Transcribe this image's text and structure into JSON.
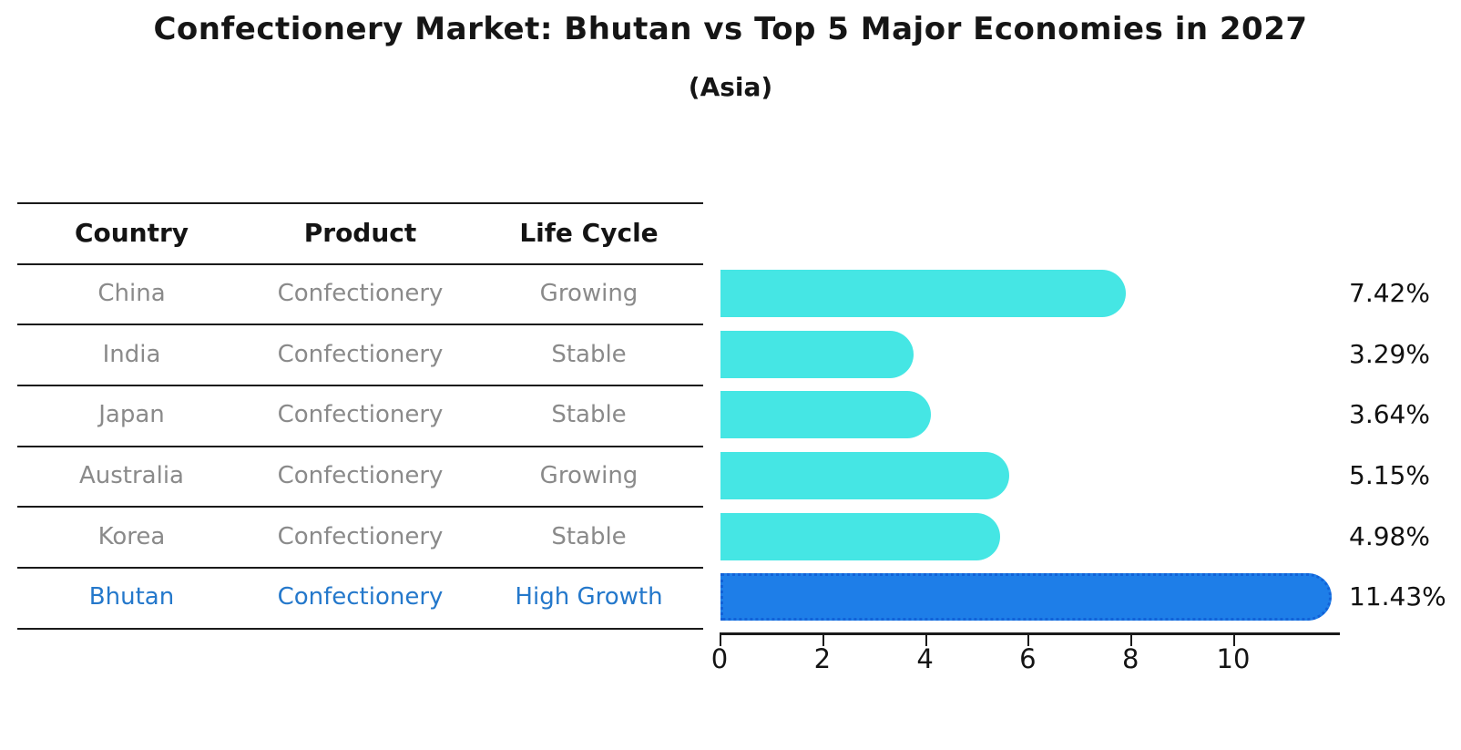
{
  "title": "Confectionery Market: Bhutan vs Top 5 Major Economies in 2027",
  "subtitle": "(Asia)",
  "table": {
    "headers": [
      "Country",
      "Product",
      "Life Cycle"
    ],
    "rows": [
      {
        "country": "China",
        "product": "Confectionery",
        "life_cycle": "Growing",
        "highlight": false
      },
      {
        "country": "India",
        "product": "Confectionery",
        "life_cycle": "Stable",
        "highlight": false
      },
      {
        "country": "Japan",
        "product": "Confectionery",
        "life_cycle": "Stable",
        "highlight": false
      },
      {
        "country": "Australia",
        "product": "Confectionery",
        "life_cycle": "Growing",
        "highlight": false
      },
      {
        "country": "Korea",
        "product": "Confectionery",
        "life_cycle": "Stable",
        "highlight": false
      },
      {
        "country": "Bhutan",
        "product": "Confectionery",
        "life_cycle": "High Growth",
        "highlight": true
      }
    ]
  },
  "chart_data": {
    "type": "bar",
    "orientation": "horizontal",
    "title": "Confectionery Market: Bhutan vs Top 5 Major Economies in 2027",
    "subtitle": "(Asia)",
    "categories": [
      "China",
      "India",
      "Japan",
      "Australia",
      "Korea",
      "Bhutan"
    ],
    "values": [
      7.42,
      3.29,
      3.64,
      5.15,
      4.98,
      11.43
    ],
    "value_labels": [
      "7.42%",
      "3.29%",
      "3.64%",
      "5.15%",
      "4.98%",
      "11.43%"
    ],
    "x_ticks": [
      0,
      2,
      4,
      6,
      8,
      10
    ],
    "xlim": [
      0,
      12
    ],
    "grid": false,
    "legend": false,
    "highlight_category": "Bhutan",
    "colors": {
      "default_bar": "#45e6e4",
      "highlight_bar": "#1e7ee8",
      "highlight_bar_border": "#1262d8",
      "highlight_text": "#2478cb",
      "row_text": "#8a8a8a",
      "header_text": "#141414",
      "line": "#1a1a1a"
    }
  }
}
